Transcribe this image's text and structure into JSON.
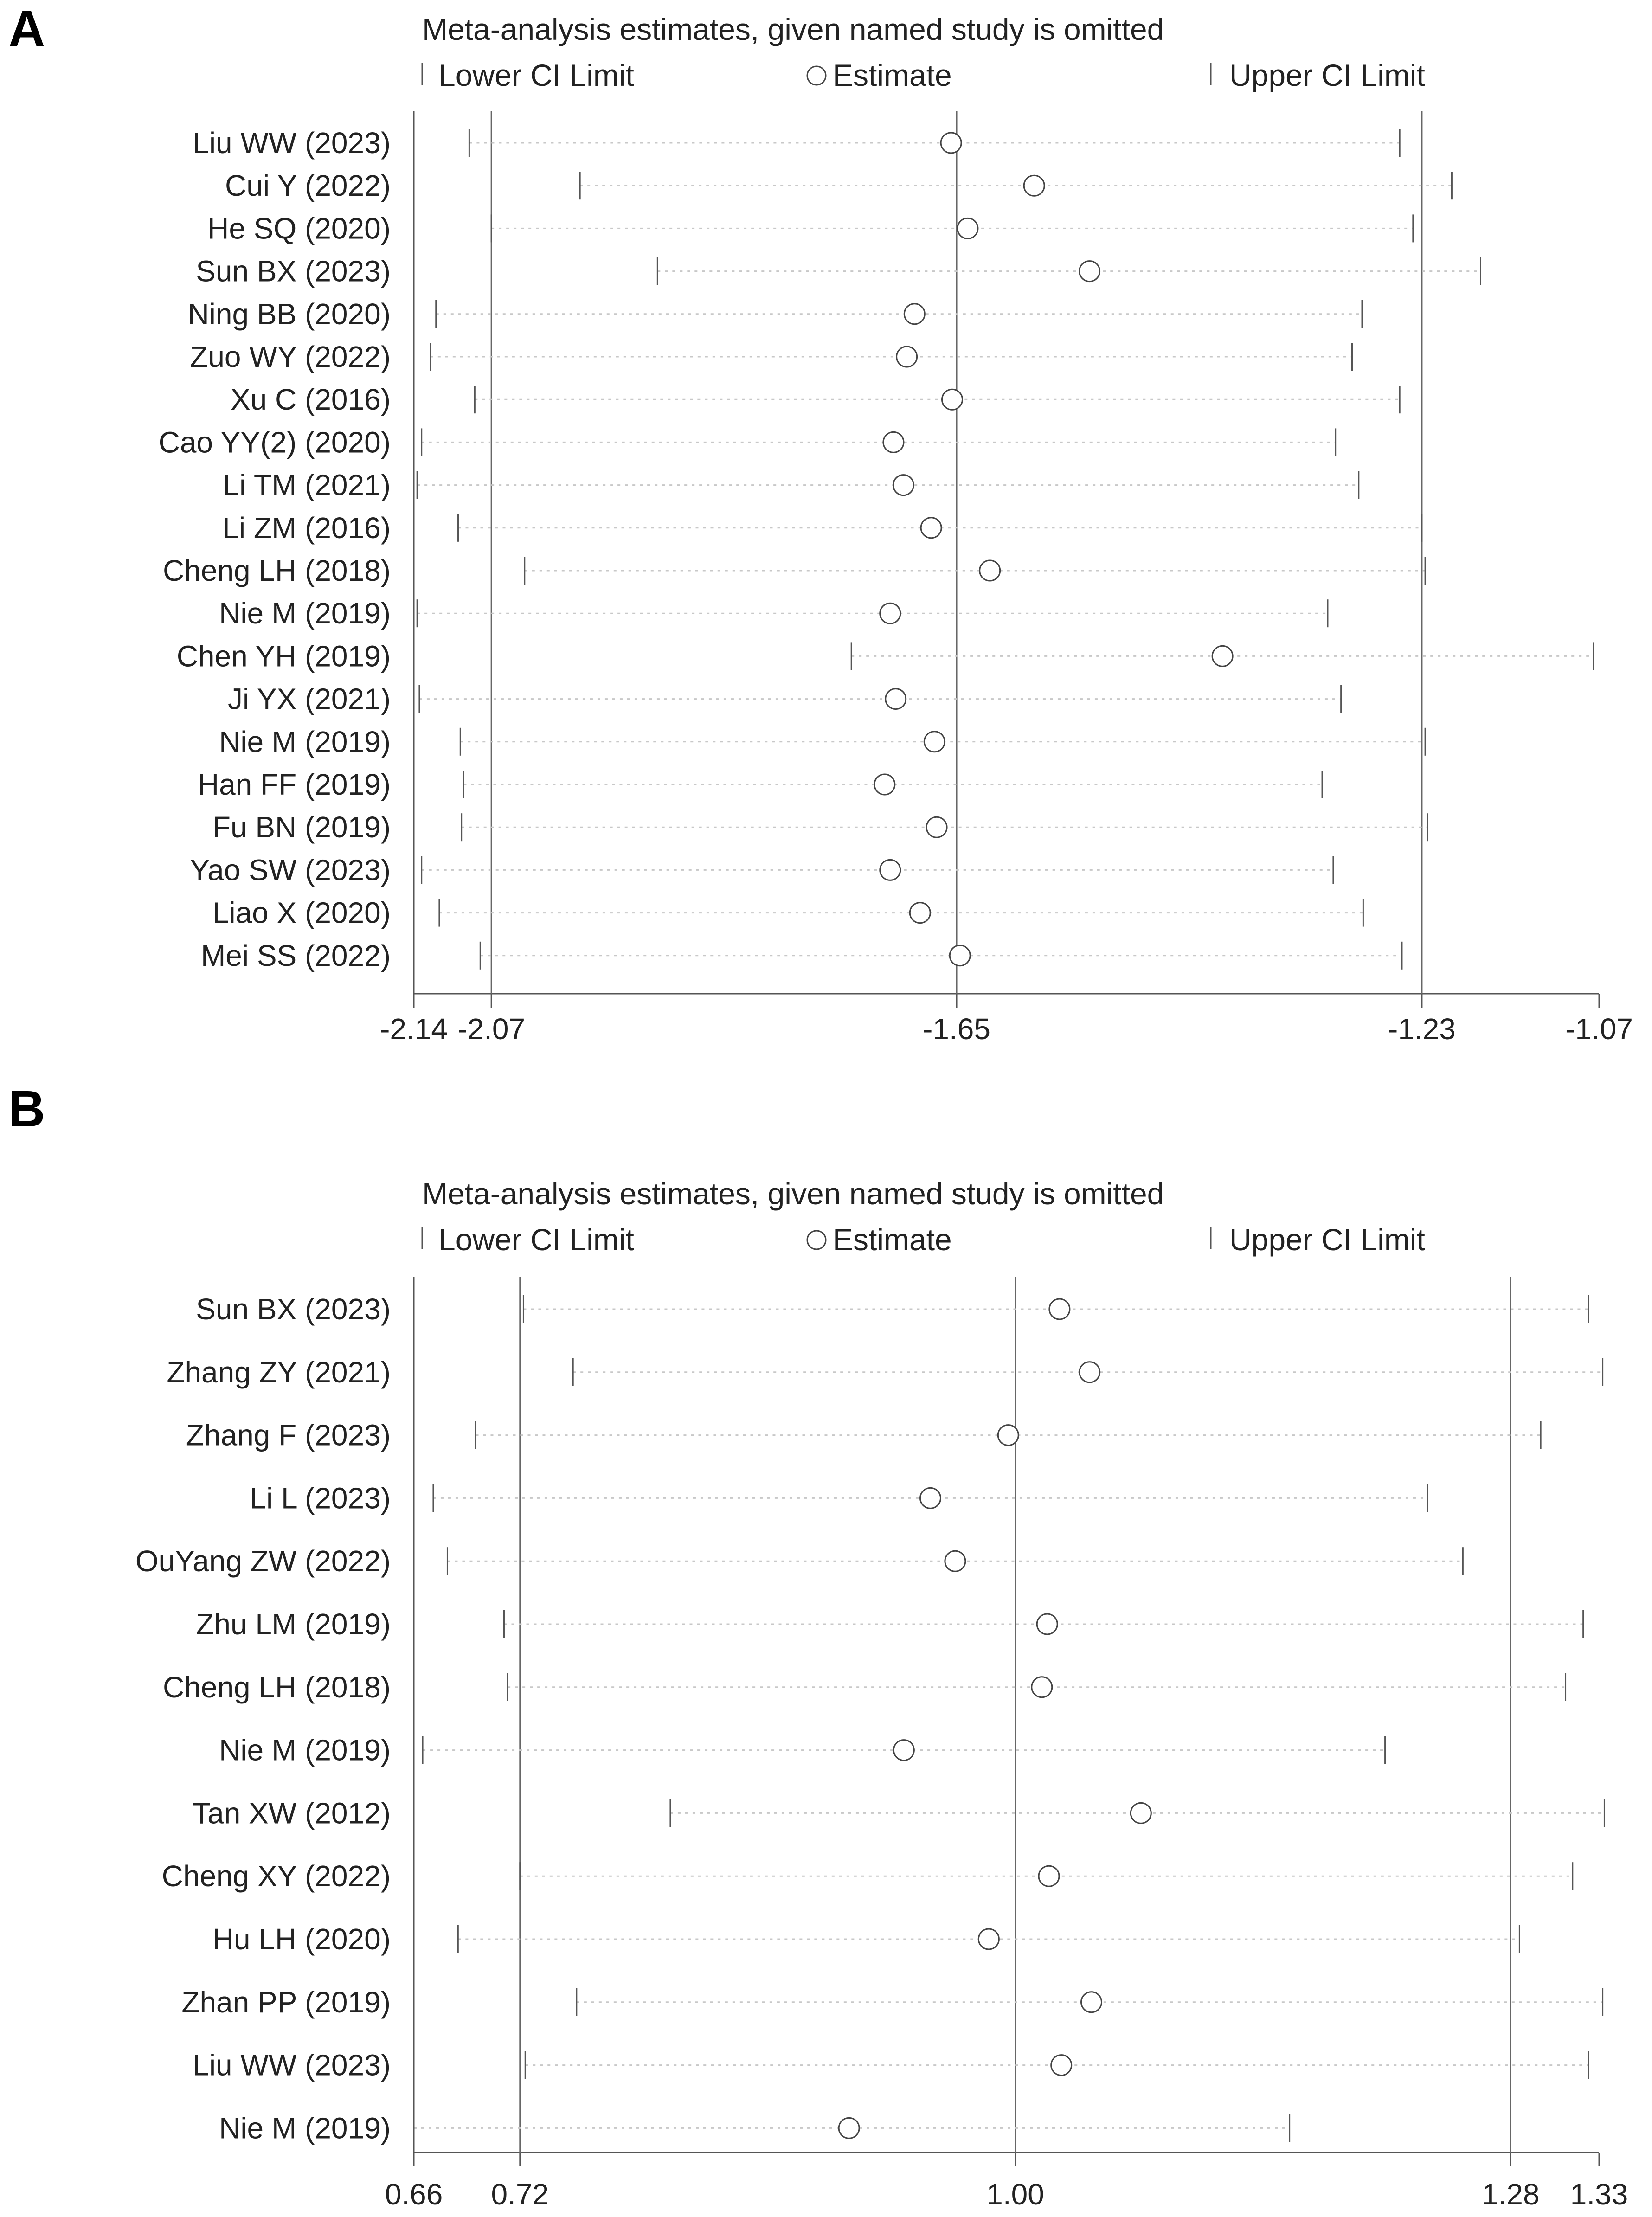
{
  "chart_data": [
    {
      "panel": "A",
      "type": "sensitivity-forest",
      "title": "Meta-analysis estimates, given named study is omitted",
      "legend": [
        "Lower CI Limit",
        "Estimate",
        "Upper CI Limit"
      ],
      "xlim": [
        -2.14,
        -1.07
      ],
      "xticks": [
        -2.14,
        -2.07,
        -1.65,
        -1.23,
        -1.07
      ],
      "xtick_labels": [
        "-2.14",
        "-2.07",
        "-1.65",
        "-1.23",
        "-1.07"
      ],
      "ref_lines": [
        -2.07,
        -1.65,
        -1.23
      ],
      "studies": [
        {
          "label": "Liu WW (2023)",
          "lower": -2.09,
          "est": -1.655,
          "upper": -1.25
        },
        {
          "label": "Cui Y  (2022)",
          "lower": -1.99,
          "est": -1.58,
          "upper": -1.203
        },
        {
          "label": "He SQ (2020)",
          "lower": -2.07,
          "est": -1.64,
          "upper": -1.238
        },
        {
          "label": "Sun BX (2023)",
          "lower": -1.92,
          "est": -1.53,
          "upper": -1.177
        },
        {
          "label": "Ning BB (2020)",
          "lower": -2.12,
          "est": -1.688,
          "upper": -1.284
        },
        {
          "label": "Zuo WY (2022)",
          "lower": -2.125,
          "est": -1.695,
          "upper": -1.293
        },
        {
          "label": "Xu C (2016)",
          "lower": -2.085,
          "est": -1.654,
          "upper": -1.25
        },
        {
          "label": "Cao YY(2) (2020)",
          "lower": -2.133,
          "est": -1.707,
          "upper": -1.308
        },
        {
          "label": "Li TM (2021)",
          "lower": -2.137,
          "est": -1.698,
          "upper": -1.287
        },
        {
          "label": "Li ZM (2016)",
          "lower": -2.1,
          "est": -1.673,
          "upper": -1.23
        },
        {
          "label": "Cheng LH (2018)",
          "lower": -2.04,
          "est": -1.62,
          "upper": -1.227
        },
        {
          "label": "Nie M (2019)",
          "lower": -2.137,
          "est": -1.71,
          "upper": -1.315
        },
        {
          "label": "Chen YH (2019)",
          "lower": -1.745,
          "est": -1.41,
          "upper": -1.075
        },
        {
          "label": "Ji YX (2021)",
          "lower": -2.135,
          "est": -1.705,
          "upper": -1.303
        },
        {
          "label": "Nie M (2019)",
          "lower": -2.098,
          "est": -1.67,
          "upper": -1.227
        },
        {
          "label": "Han FF (2019)",
          "lower": -2.095,
          "est": -1.715,
          "upper": -1.32
        },
        {
          "label": "Fu BN (2019)",
          "lower": -2.097,
          "est": -1.668,
          "upper": -1.225
        },
        {
          "label": "Yao SW (2023)",
          "lower": -2.133,
          "est": -1.71,
          "upper": -1.31
        },
        {
          "label": "Liao X (2020)",
          "lower": -2.117,
          "est": -1.683,
          "upper": -1.283
        },
        {
          "label": "Mei SS (2022)",
          "lower": -2.08,
          "est": -1.647,
          "upper": -1.248
        }
      ]
    },
    {
      "panel": "B",
      "type": "sensitivity-forest",
      "title": "Meta-analysis estimates, given named study is omitted",
      "legend": [
        "Lower CI Limit",
        "Estimate",
        "Upper CI Limit"
      ],
      "xlim": [
        0.66,
        1.33
      ],
      "xticks": [
        0.66,
        0.72,
        1.0,
        1.28,
        1.33
      ],
      "xtick_labels": [
        "0.66",
        "0.72",
        "1.00",
        "1.28",
        "1.33"
      ],
      "ref_lines": [
        0.72,
        1.0,
        1.28
      ],
      "studies": [
        {
          "label": "Sun BX (2023)",
          "lower": 0.722,
          "est": 1.025,
          "upper": 1.324
        },
        {
          "label": "Zhang ZY (2021)",
          "lower": 0.75,
          "est": 1.042,
          "upper": 1.332
        },
        {
          "label": "Zhang F (2023)",
          "lower": 0.695,
          "est": 0.996,
          "upper": 1.297
        },
        {
          "label": "Li L (2023)",
          "lower": 0.671,
          "est": 0.952,
          "upper": 1.233
        },
        {
          "label": "OuYang ZW (2022)",
          "lower": 0.679,
          "est": 0.966,
          "upper": 1.253
        },
        {
          "label": "Zhu LM (2019)",
          "lower": 0.711,
          "est": 1.018,
          "upper": 1.321
        },
        {
          "label": "Cheng LH (2018)",
          "lower": 0.713,
          "est": 1.015,
          "upper": 1.311
        },
        {
          "label": "Nie M (2019)",
          "lower": 0.665,
          "est": 0.937,
          "upper": 1.209
        },
        {
          "label": "Tan XW (2012)",
          "lower": 0.805,
          "est": 1.071,
          "upper": 1.333
        },
        {
          "label": "Cheng XY (2022)",
          "lower": 0.72,
          "est": 1.019,
          "upper": 1.315
        },
        {
          "label": "Hu LH (2020)",
          "lower": 0.685,
          "est": 0.985,
          "upper": 1.285
        },
        {
          "label": "Zhan PP (2019)",
          "lower": 0.752,
          "est": 1.043,
          "upper": 1.332
        },
        {
          "label": "Liu WW (2023)",
          "lower": 0.723,
          "est": 1.026,
          "upper": 1.324
        },
        {
          "label": "Nie M (2019)",
          "lower": 0.66,
          "est": 0.906,
          "upper": 1.155
        }
      ]
    }
  ]
}
